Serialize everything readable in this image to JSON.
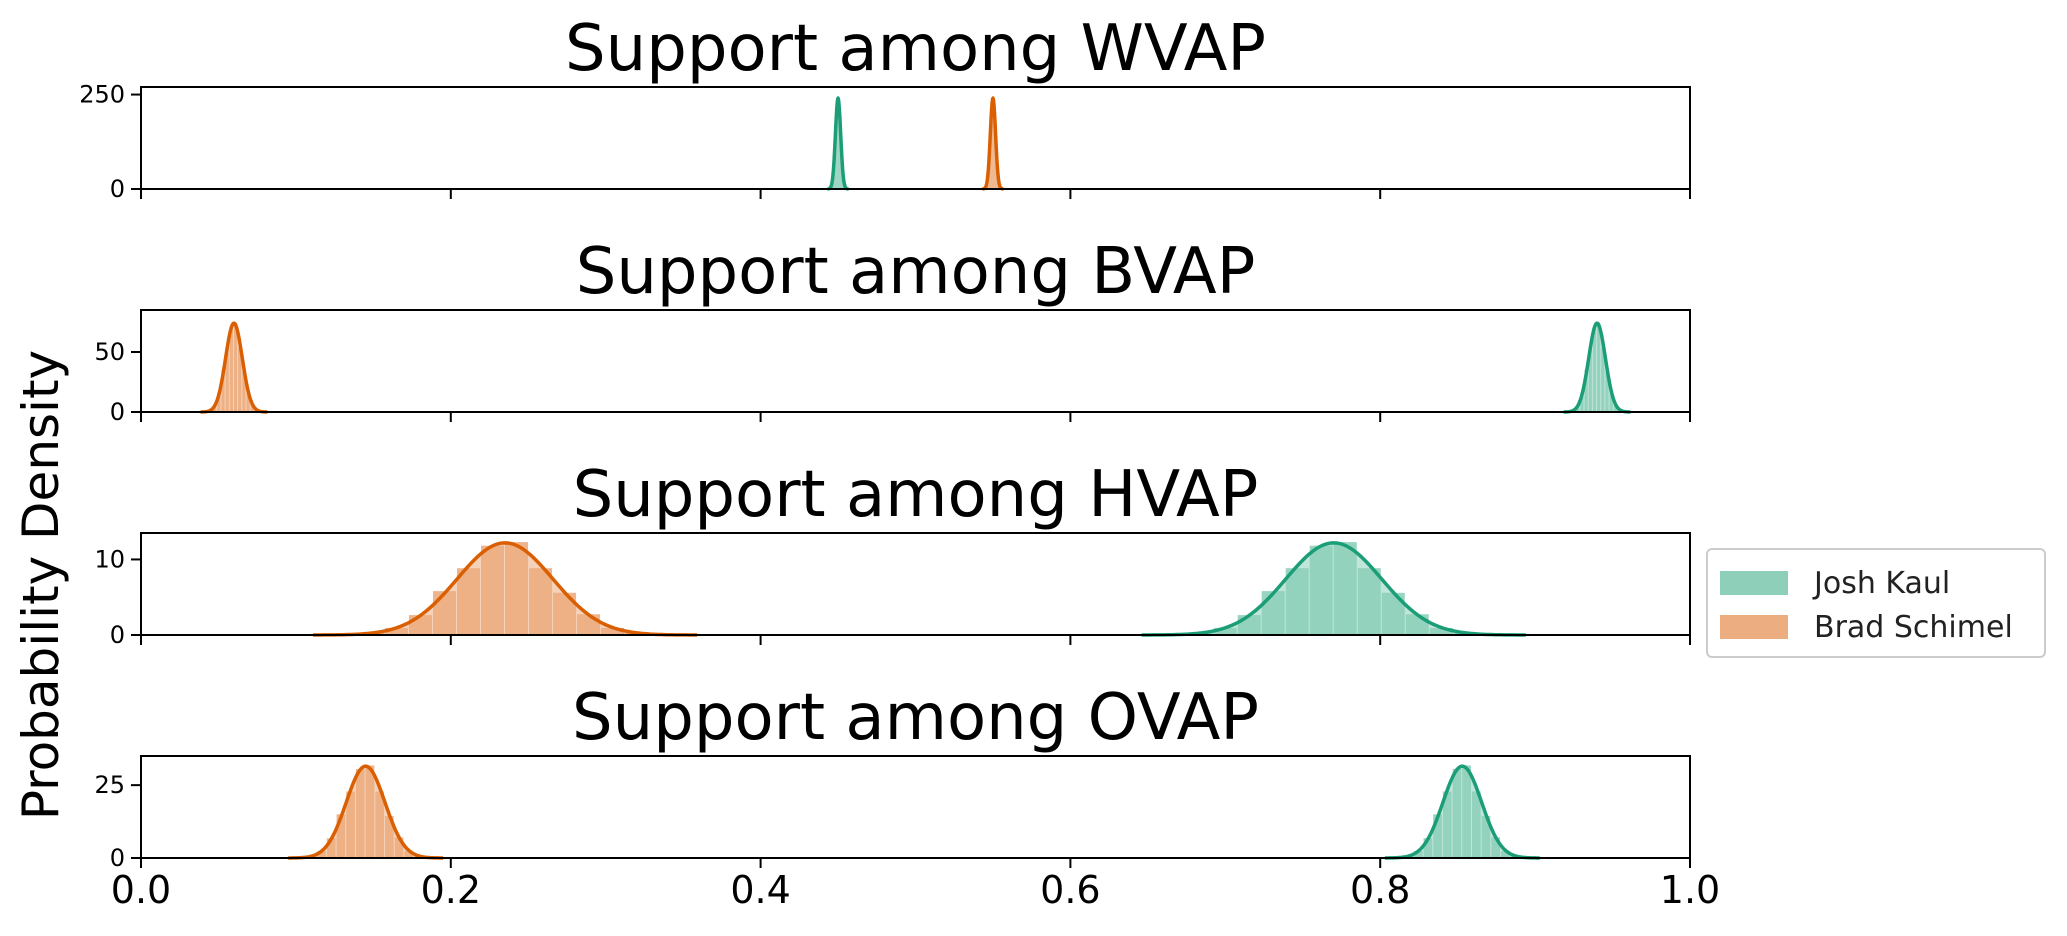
{
  "chart_data": {
    "type": "area",
    "ylabel": "Probability Density",
    "xlim": [
      0.0,
      1.0
    ],
    "x_ticks": [
      "0.0",
      "0.2",
      "0.4",
      "0.6",
      "0.8",
      "1.0"
    ],
    "legend": {
      "placement": "center-right outside",
      "entries": [
        "Josh Kaul",
        "Brad Schimel"
      ]
    },
    "colors": {
      "Josh Kaul": "#1b9e77",
      "Brad Schimel": "#d95f02"
    },
    "panels": [
      {
        "title": "Support among WVAP",
        "ylim": [
          0,
          270
        ],
        "y_ticks": [
          0,
          250
        ],
        "series": [
          {
            "name": "Josh Kaul",
            "mean": 0.45,
            "sd": 0.0017,
            "peak": 240,
            "hist": false
          },
          {
            "name": "Brad Schimel",
            "mean": 0.55,
            "sd": 0.0017,
            "peak": 240,
            "hist": false
          }
        ]
      },
      {
        "title": "Support among BVAP",
        "ylim": [
          0,
          85
        ],
        "y_ticks": [
          0,
          50
        ],
        "series": [
          {
            "name": "Josh Kaul",
            "mean": 0.94,
            "sd": 0.0054,
            "peak": 74,
            "hist": true
          },
          {
            "name": "Brad Schimel",
            "mean": 0.06,
            "sd": 0.0054,
            "peak": 74,
            "hist": true
          }
        ]
      },
      {
        "title": "Support among HVAP",
        "ylim": [
          0,
          13.5
        ],
        "y_ticks": [
          0,
          10
        ],
        "series": [
          {
            "name": "Josh Kaul",
            "mean": 0.77,
            "sd": 0.031,
            "peak": 12.2,
            "hist": true
          },
          {
            "name": "Brad Schimel",
            "mean": 0.235,
            "sd": 0.031,
            "peak": 12.2,
            "hist": true
          }
        ]
      },
      {
        "title": "Support among OVAP",
        "ylim": [
          0,
          35
        ],
        "y_ticks": [
          0,
          25
        ],
        "series": [
          {
            "name": "Josh Kaul",
            "mean": 0.853,
            "sd": 0.0125,
            "peak": 31.5,
            "hist": true
          },
          {
            "name": "Brad Schimel",
            "mean": 0.145,
            "sd": 0.0125,
            "peak": 31.5,
            "hist": true
          }
        ]
      }
    ]
  }
}
